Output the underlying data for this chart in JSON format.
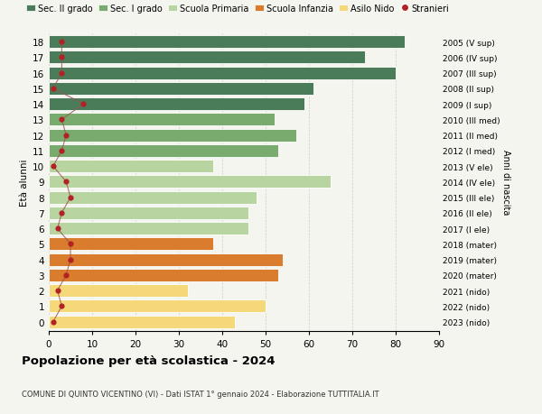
{
  "ages": [
    18,
    17,
    16,
    15,
    14,
    13,
    12,
    11,
    10,
    9,
    8,
    7,
    6,
    5,
    4,
    3,
    2,
    1,
    0
  ],
  "right_labels": [
    "2005 (V sup)",
    "2006 (IV sup)",
    "2007 (III sup)",
    "2008 (II sup)",
    "2009 (I sup)",
    "2010 (III med)",
    "2011 (II med)",
    "2012 (I med)",
    "2013 (V ele)",
    "2014 (IV ele)",
    "2015 (III ele)",
    "2016 (II ele)",
    "2017 (I ele)",
    "2018 (mater)",
    "2019 (mater)",
    "2020 (mater)",
    "2021 (nido)",
    "2022 (nido)",
    "2023 (nido)"
  ],
  "bar_values": [
    82,
    73,
    80,
    61,
    59,
    52,
    57,
    53,
    38,
    65,
    48,
    46,
    46,
    38,
    54,
    53,
    32,
    50,
    43
  ],
  "stranieri_values": [
    3,
    3,
    3,
    1,
    8,
    3,
    4,
    3,
    1,
    4,
    5,
    3,
    2,
    5,
    5,
    4,
    2,
    3,
    1
  ],
  "bar_colors": [
    "#4a7c59",
    "#4a7c59",
    "#4a7c59",
    "#4a7c59",
    "#4a7c59",
    "#7aab6e",
    "#7aab6e",
    "#7aab6e",
    "#b8d4a0",
    "#b8d4a0",
    "#b8d4a0",
    "#b8d4a0",
    "#b8d4a0",
    "#d97c2e",
    "#d97c2e",
    "#d97c2e",
    "#f5d87a",
    "#f5d87a",
    "#f5d87a"
  ],
  "legend_labels": [
    "Sec. II grado",
    "Sec. I grado",
    "Scuola Primaria",
    "Scuola Infanzia",
    "Asilo Nido",
    "Stranieri"
  ],
  "legend_colors": [
    "#4a7c59",
    "#7aab6e",
    "#b8d4a0",
    "#d97c2e",
    "#f5d87a",
    "#b22222"
  ],
  "title": "Popolazione per età scolastica - 2024",
  "subtitle": "COMUNE DI QUINTO VICENTINO (VI) - Dati ISTAT 1° gennaio 2024 - Elaborazione TUTTITALIA.IT",
  "ylabel": "Età alunni",
  "right_ylabel": "Anni di nascita",
  "xlim": [
    0,
    90
  ],
  "xticks": [
    0,
    10,
    20,
    30,
    40,
    50,
    60,
    70,
    80,
    90
  ],
  "bar_height": 0.82,
  "stranieri_color": "#b22222",
  "stranieri_line_color": "#9b5050",
  "bg_color": "#f5f5f0"
}
